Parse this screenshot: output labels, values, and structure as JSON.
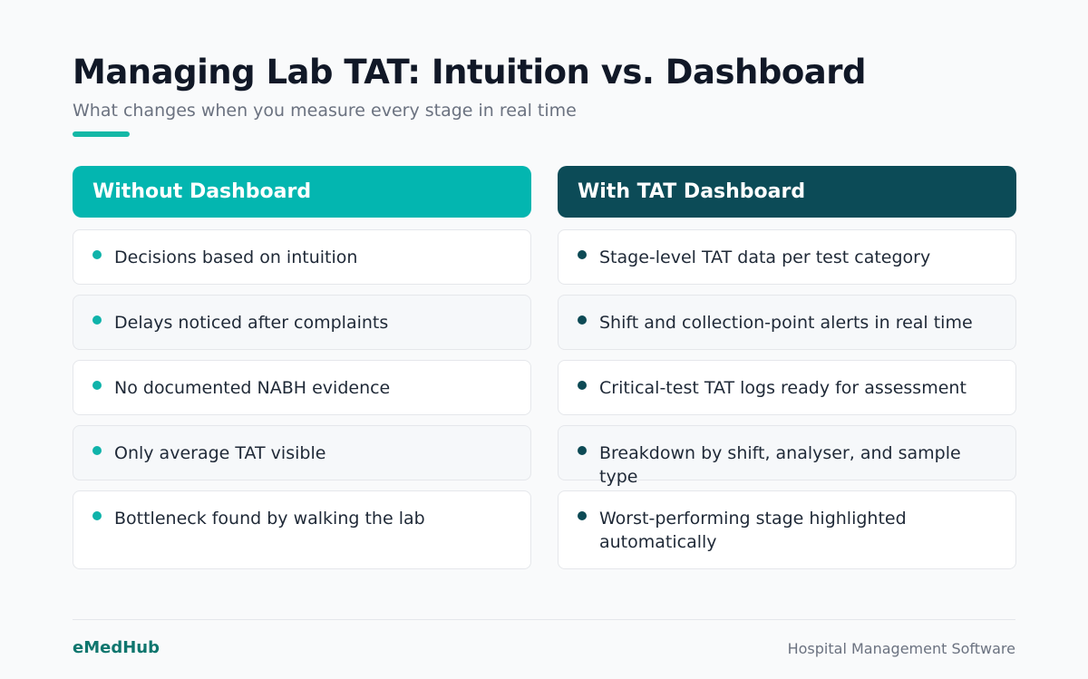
{
  "header": {
    "title": "Managing Lab TAT: Intuition vs. Dashboard",
    "subtitle": "What changes when you measure every stage in real time"
  },
  "columns": {
    "left": {
      "heading": "Without Dashboard",
      "items": [
        "Decisions based on intuition",
        "Delays noticed after complaints",
        "No documented NABH evidence",
        "Only average TAT visible",
        "Bottleneck found by walking the lab"
      ]
    },
    "right": {
      "heading": "With TAT Dashboard",
      "items": [
        "Stage-level TAT data per test category",
        "Shift and collection-point alerts in real time",
        "Critical-test TAT logs ready for assessment",
        "Breakdown by shift, analyser, and sample type",
        "Worst-performing stage highlighted automatically"
      ]
    }
  },
  "footer": {
    "brand": "eMedHub",
    "tagline": "Hospital Management Software"
  },
  "colors": {
    "accent": "#14b8a6",
    "left_header": "#03b6b0",
    "right_header": "#0c4b57",
    "brand": "#0f766e"
  }
}
